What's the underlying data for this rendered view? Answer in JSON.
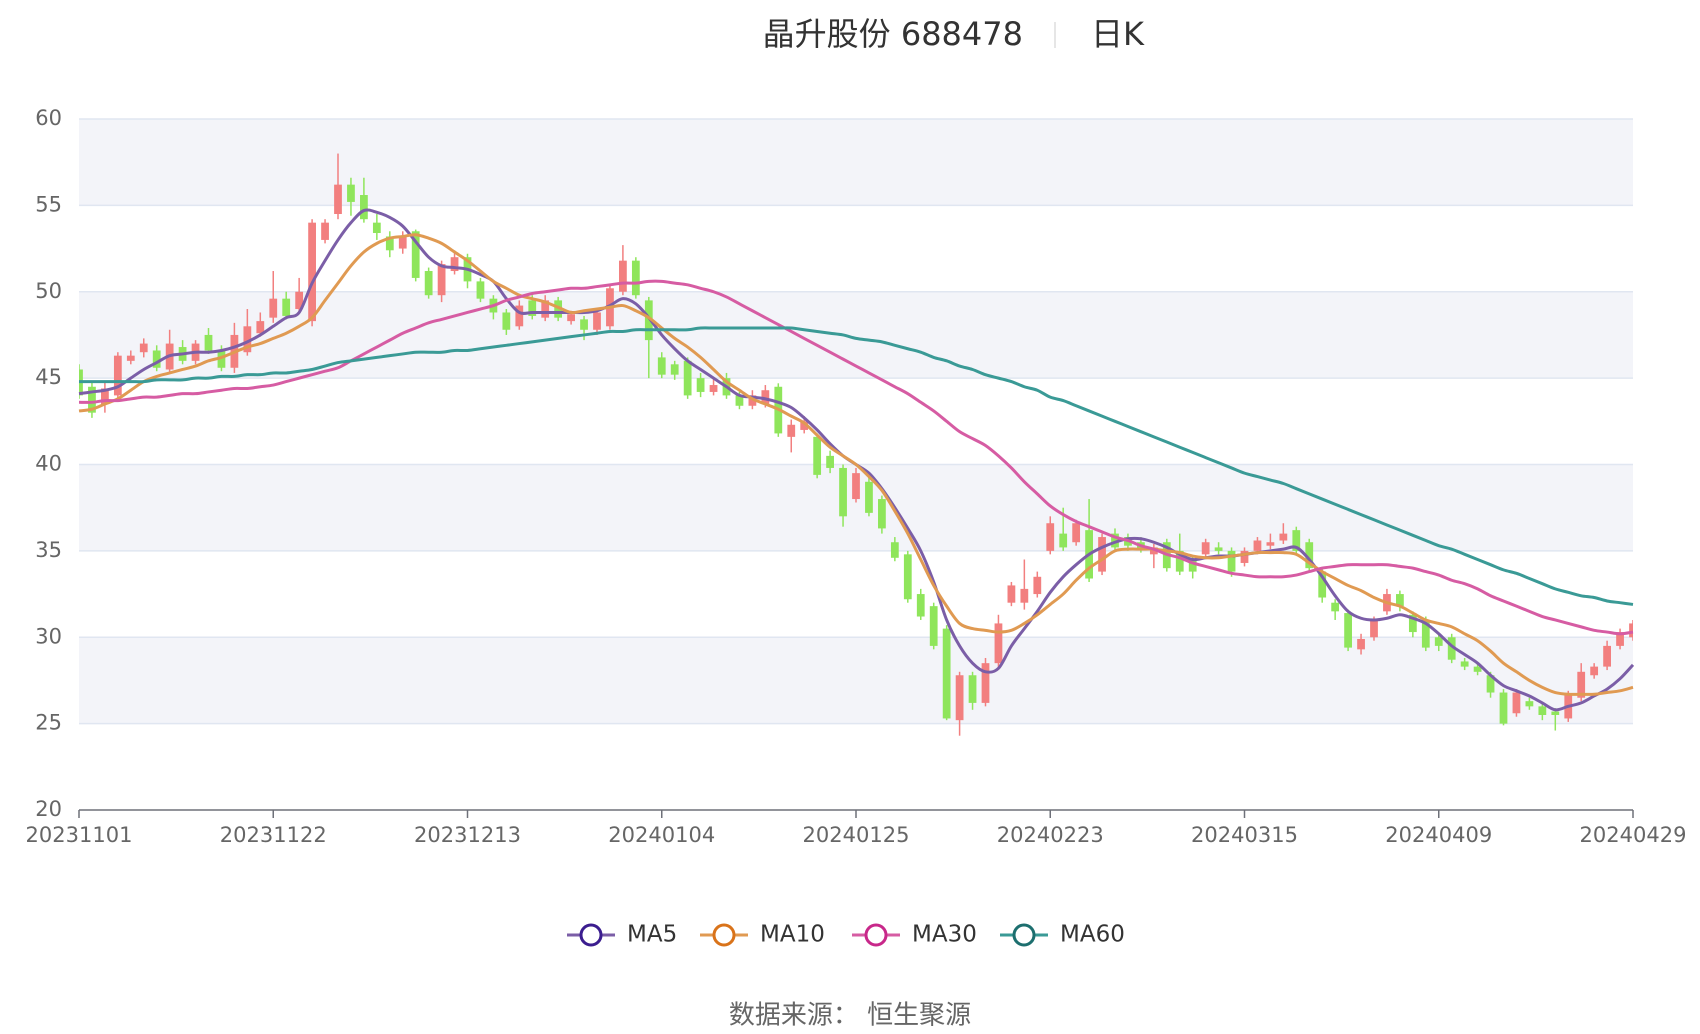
{
  "chart_data": {
    "type": "candlestick",
    "title": "晶升股份 688478",
    "subtitle": "日K",
    "source": "数据来源： 恒生聚源",
    "categories": [
      "20231101",
      null,
      null,
      null,
      null,
      null,
      null,
      null,
      null,
      null,
      null,
      null,
      null,
      null,
      null,
      "20231122",
      null,
      null,
      null,
      null,
      null,
      null,
      null,
      null,
      null,
      null,
      null,
      null,
      null,
      null,
      "20231213",
      null,
      null,
      null,
      null,
      null,
      null,
      null,
      null,
      null,
      null,
      null,
      null,
      null,
      null,
      "20240104",
      null,
      null,
      null,
      null,
      null,
      null,
      null,
      null,
      null,
      null,
      null,
      null,
      null,
      null,
      "20240125",
      null,
      null,
      null,
      null,
      null,
      null,
      null,
      null,
      null,
      null,
      null,
      null,
      null,
      null,
      "20240223",
      null,
      null,
      null,
      null,
      null,
      null,
      null,
      null,
      null,
      null,
      null,
      null,
      null,
      null,
      "20240315",
      null,
      null,
      null,
      null,
      null,
      null,
      null,
      null,
      null,
      null,
      null,
      null,
      null,
      null,
      "20240409",
      null,
      null,
      null,
      null,
      null,
      null,
      null,
      null,
      null,
      null,
      null,
      null,
      null,
      null,
      "20240429"
    ],
    "values": [
      [
        45.5,
        44.0,
        43.8,
        45.8
      ],
      [
        44.5,
        43.0,
        42.7,
        44.8
      ],
      [
        43.5,
        44.4,
        43.0,
        44.8
      ],
      [
        44.0,
        46.3,
        43.8,
        46.5
      ],
      [
        46.0,
        46.3,
        45.8,
        46.6
      ],
      [
        46.5,
        47.0,
        46.2,
        47.3
      ],
      [
        46.6,
        45.6,
        45.4,
        46.9
      ],
      [
        45.5,
        47.0,
        45.3,
        47.8
      ],
      [
        46.8,
        46.0,
        45.8,
        47.2
      ],
      [
        46.0,
        47.0,
        45.8,
        47.2
      ],
      [
        47.5,
        46.6,
        46.4,
        47.9
      ],
      [
        46.6,
        45.6,
        45.4,
        46.9
      ],
      [
        45.6,
        47.5,
        45.3,
        48.2
      ],
      [
        46.5,
        48.0,
        46.3,
        49.0
      ],
      [
        47.6,
        48.3,
        47.4,
        48.8
      ],
      [
        48.5,
        49.6,
        48.2,
        51.2
      ],
      [
        49.6,
        48.6,
        48.4,
        50.0
      ],
      [
        49.0,
        50.0,
        48.8,
        50.8
      ],
      [
        48.3,
        54.0,
        48.0,
        54.2
      ],
      [
        53.0,
        54.0,
        52.8,
        54.2
      ],
      [
        54.5,
        56.2,
        54.2,
        58.0
      ],
      [
        56.2,
        55.2,
        54.4,
        56.6
      ],
      [
        55.6,
        54.2,
        54.0,
        56.6
      ],
      [
        54.0,
        53.4,
        53.0,
        54.5
      ],
      [
        53.2,
        52.4,
        52.0,
        53.5
      ],
      [
        52.5,
        53.2,
        52.2,
        53.5
      ],
      [
        53.5,
        50.8,
        50.6,
        53.6
      ],
      [
        51.2,
        49.8,
        49.6,
        51.4
      ],
      [
        49.8,
        51.6,
        49.4,
        51.8
      ],
      [
        51.2,
        52.0,
        51.0,
        52.4
      ],
      [
        52.0,
        50.6,
        50.2,
        52.2
      ],
      [
        50.6,
        49.6,
        49.4,
        50.8
      ],
      [
        49.6,
        48.8,
        48.4,
        49.8
      ],
      [
        48.8,
        47.8,
        47.5,
        49.0
      ],
      [
        48.0,
        49.2,
        47.8,
        49.5
      ],
      [
        49.5,
        48.6,
        48.4,
        49.8
      ],
      [
        48.5,
        49.5,
        48.3,
        49.8
      ],
      [
        49.5,
        48.5,
        48.3,
        49.7
      ],
      [
        48.3,
        48.7,
        48.1,
        48.9
      ],
      [
        48.4,
        47.8,
        47.2,
        48.6
      ],
      [
        47.8,
        48.8,
        47.5,
        49.0
      ],
      [
        48.0,
        50.2,
        47.8,
        50.4
      ],
      [
        50.0,
        51.8,
        49.8,
        52.7
      ],
      [
        51.8,
        49.8,
        49.6,
        52.0
      ],
      [
        49.5,
        47.2,
        45.0,
        49.7
      ],
      [
        46.2,
        45.2,
        45.0,
        46.5
      ],
      [
        45.8,
        45.2,
        44.9,
        46.0
      ],
      [
        46.0,
        44.0,
        43.8,
        46.2
      ],
      [
        45.0,
        44.2,
        43.9,
        45.3
      ],
      [
        44.2,
        44.6,
        44.0,
        45.0
      ],
      [
        45.0,
        44.0,
        43.8,
        45.3
      ],
      [
        44.0,
        43.4,
        43.2,
        44.2
      ],
      [
        43.4,
        44.0,
        43.2,
        44.3
      ],
      [
        43.5,
        44.3,
        43.3,
        44.6
      ],
      [
        44.5,
        41.8,
        41.6,
        44.7
      ],
      [
        41.6,
        42.3,
        40.7,
        42.6
      ],
      [
        42.0,
        42.5,
        41.8,
        42.8
      ],
      [
        41.6,
        39.4,
        39.2,
        41.8
      ],
      [
        40.5,
        39.8,
        39.5,
        40.8
      ],
      [
        39.8,
        37.0,
        36.4,
        40.0
      ],
      [
        38.0,
        39.5,
        37.8,
        39.8
      ],
      [
        39.0,
        37.2,
        37.0,
        39.3
      ],
      [
        38.0,
        36.3,
        36.0,
        38.2
      ],
      [
        35.5,
        34.6,
        34.4,
        35.8
      ],
      [
        34.8,
        32.2,
        32.0,
        35.0
      ],
      [
        32.5,
        31.2,
        31.0,
        32.8
      ],
      [
        31.8,
        29.5,
        29.3,
        32.0
      ],
      [
        30.5,
        25.3,
        25.2,
        30.7
      ],
      [
        25.2,
        27.8,
        24.3,
        28.0
      ],
      [
        27.8,
        26.2,
        25.8,
        28.0
      ],
      [
        26.2,
        28.5,
        26.0,
        28.8
      ],
      [
        28.5,
        30.8,
        28.2,
        31.3
      ],
      [
        32.0,
        33.0,
        31.8,
        33.2
      ],
      [
        32.0,
        32.8,
        31.6,
        34.5
      ],
      [
        32.5,
        33.5,
        32.3,
        33.8
      ],
      [
        35.0,
        36.6,
        34.8,
        37.0
      ],
      [
        36.0,
        35.2,
        35.0,
        37.5
      ],
      [
        35.5,
        36.6,
        35.3,
        36.8
      ],
      [
        36.2,
        33.4,
        33.2,
        38.0
      ],
      [
        33.8,
        35.8,
        33.6,
        36.0
      ],
      [
        36.0,
        35.2,
        35.0,
        36.3
      ],
      [
        35.8,
        35.3,
        35.0,
        36.0
      ],
      [
        35.5,
        35.1,
        34.9,
        35.8
      ],
      [
        34.8,
        35.2,
        34.0,
        35.4
      ],
      [
        35.5,
        34.0,
        33.8,
        35.7
      ],
      [
        35.0,
        33.8,
        33.6,
        36.0
      ],
      [
        34.5,
        33.8,
        33.4,
        34.7
      ],
      [
        34.8,
        35.5,
        34.6,
        35.7
      ],
      [
        35.2,
        35.0,
        34.8,
        35.5
      ],
      [
        35.0,
        33.8,
        33.5,
        35.2
      ],
      [
        34.3,
        35.0,
        34.1,
        35.2
      ],
      [
        35.0,
        35.6,
        34.8,
        35.8
      ],
      [
        35.3,
        35.5,
        35.1,
        36.0
      ],
      [
        35.6,
        36.0,
        35.4,
        36.6
      ],
      [
        36.2,
        35.0,
        34.8,
        36.4
      ],
      [
        35.5,
        34.0,
        33.8,
        35.7
      ],
      [
        33.8,
        32.3,
        32.0,
        34.0
      ],
      [
        32.0,
        31.5,
        31.0,
        32.2
      ],
      [
        31.4,
        29.4,
        29.2,
        31.6
      ],
      [
        29.3,
        29.9,
        29.0,
        30.2
      ],
      [
        30.0,
        31.0,
        29.8,
        31.2
      ],
      [
        31.5,
        32.5,
        31.3,
        32.8
      ],
      [
        32.5,
        31.8,
        31.5,
        32.7
      ],
      [
        31.3,
        30.3,
        30.0,
        31.5
      ],
      [
        31.0,
        29.4,
        29.2,
        31.2
      ],
      [
        30.0,
        29.5,
        29.2,
        30.2
      ],
      [
        30.0,
        28.7,
        28.5,
        30.2
      ],
      [
        28.6,
        28.3,
        28.1,
        28.8
      ],
      [
        28.3,
        28.0,
        27.8,
        28.5
      ],
      [
        27.8,
        26.8,
        26.5,
        28.0
      ],
      [
        26.8,
        25.0,
        24.9,
        27.0
      ],
      [
        25.6,
        26.8,
        25.4,
        27.0
      ],
      [
        26.3,
        26.0,
        25.8,
        26.5
      ],
      [
        26.0,
        25.5,
        25.2,
        26.2
      ],
      [
        25.7,
        25.5,
        24.6,
        25.9
      ],
      [
        25.3,
        26.7,
        25.1,
        26.9
      ],
      [
        26.5,
        28.0,
        26.3,
        28.5
      ],
      [
        27.8,
        28.3,
        27.6,
        28.5
      ],
      [
        28.3,
        29.5,
        28.1,
        29.8
      ],
      [
        29.5,
        30.3,
        29.3,
        30.5
      ],
      [
        30.0,
        30.8,
        29.8,
        31.0
      ]
    ],
    "up_color": "#f27f7f",
    "down_color": "#8fe55b",
    "series": [
      {
        "name": "MA5",
        "color": "#7b5ea7",
        "marker_color": "#3b1d8f",
        "values": [
          44.1,
          44.2,
          44.3,
          44.5,
          45.0,
          45.5,
          45.9,
          46.3,
          46.4,
          46.5,
          46.5,
          46.6,
          46.8,
          47.1,
          47.5,
          48.0,
          48.5,
          48.8,
          50.5,
          51.8,
          53.0,
          54.0,
          54.7,
          54.6,
          54.3,
          53.8,
          52.9,
          52.0,
          51.5,
          51.4,
          51.3,
          51.0,
          50.6,
          49.6,
          48.8,
          48.8,
          48.8,
          48.8,
          48.8,
          48.8,
          48.9,
          49.2,
          49.6,
          49.3,
          48.5,
          47.5,
          46.7,
          46.0,
          45.5,
          45.0,
          44.5,
          44.0,
          43.9,
          43.8,
          43.6,
          43.3,
          42.7,
          42.0,
          41.2,
          40.5,
          40.0,
          39.5,
          38.6,
          37.5,
          36.3,
          35.0,
          33.2,
          31.0,
          29.5,
          28.5,
          28.0,
          28.2,
          29.5,
          30.5,
          31.5,
          32.6,
          33.5,
          34.2,
          34.8,
          35.2,
          35.5,
          35.7,
          35.7,
          35.5,
          35.2,
          34.8,
          34.5,
          34.6,
          34.7,
          34.7,
          34.8,
          34.9,
          35.0,
          35.1,
          35.2,
          34.5,
          33.5,
          32.4,
          31.5,
          31.1,
          31.0,
          31.1,
          31.3,
          31.1,
          30.8,
          30.2,
          29.5,
          29.0,
          28.5,
          27.8,
          27.2,
          26.9,
          26.6,
          26.2,
          25.8,
          26.0,
          26.2,
          26.6,
          27.0,
          27.6,
          28.4
        ]
      },
      {
        "name": "MA10",
        "color": "#e09a52",
        "marker_color": "#d9731a",
        "values": [
          43.1,
          43.2,
          43.5,
          43.8,
          44.3,
          44.8,
          45.1,
          45.3,
          45.5,
          45.7,
          46.0,
          46.2,
          46.5,
          46.8,
          47.0,
          47.3,
          47.6,
          48.0,
          48.5,
          49.5,
          50.5,
          51.5,
          52.3,
          52.8,
          53.1,
          53.2,
          53.3,
          53.1,
          52.8,
          52.3,
          51.8,
          51.2,
          50.6,
          50.2,
          49.8,
          49.6,
          49.4,
          49.1,
          48.8,
          48.9,
          49.0,
          49.1,
          49.2,
          48.9,
          48.5,
          47.9,
          47.3,
          46.8,
          46.2,
          45.5,
          44.8,
          44.3,
          43.8,
          43.5,
          43.2,
          42.8,
          42.4,
          41.7,
          41.0,
          40.5,
          40.0,
          39.3,
          38.5,
          37.3,
          36.0,
          34.5,
          33.0,
          31.8,
          30.8,
          30.5,
          30.4,
          30.3,
          30.4,
          30.8,
          31.3,
          31.9,
          32.5,
          33.3,
          34.0,
          34.5,
          35.0,
          35.1,
          35.1,
          35.1,
          35.0,
          34.9,
          34.7,
          34.6,
          34.6,
          34.7,
          34.8,
          34.9,
          34.9,
          34.9,
          34.8,
          34.3,
          33.8,
          33.4,
          33.0,
          32.7,
          32.3,
          32.0,
          31.8,
          31.4,
          31.0,
          30.8,
          30.6,
          30.2,
          29.8,
          29.2,
          28.5,
          28.0,
          27.5,
          27.1,
          26.8,
          26.7,
          26.7,
          26.7,
          26.8,
          26.9,
          27.1
        ]
      },
      {
        "name": "MA30",
        "color": "#d65ca3",
        "marker_color": "#c8288a",
        "values": [
          43.6,
          43.6,
          43.7,
          43.7,
          43.8,
          43.9,
          43.9,
          44.0,
          44.1,
          44.1,
          44.2,
          44.3,
          44.4,
          44.4,
          44.5,
          44.6,
          44.8,
          45.0,
          45.2,
          45.4,
          45.6,
          46.0,
          46.4,
          46.8,
          47.2,
          47.6,
          47.9,
          48.2,
          48.4,
          48.6,
          48.8,
          49.0,
          49.2,
          49.5,
          49.7,
          49.9,
          50.0,
          50.1,
          50.2,
          50.2,
          50.3,
          50.4,
          50.5,
          50.5,
          50.6,
          50.6,
          50.5,
          50.4,
          50.2,
          50.0,
          49.7,
          49.3,
          48.9,
          48.5,
          48.1,
          47.7,
          47.3,
          46.9,
          46.5,
          46.1,
          45.7,
          45.3,
          44.9,
          44.5,
          44.1,
          43.6,
          43.1,
          42.5,
          41.9,
          41.5,
          41.1,
          40.5,
          39.8,
          39.0,
          38.3,
          37.6,
          37.1,
          36.7,
          36.4,
          36.1,
          35.8,
          35.6,
          35.3,
          35.1,
          34.8,
          34.6,
          34.3,
          34.1,
          33.9,
          33.7,
          33.6,
          33.5,
          33.5,
          33.5,
          33.6,
          33.8,
          34.0,
          34.1,
          34.2,
          34.2,
          34.2,
          34.2,
          34.1,
          34.0,
          33.8,
          33.6,
          33.3,
          33.1,
          32.8,
          32.4,
          32.1,
          31.8,
          31.5,
          31.2,
          31.0,
          30.8,
          30.6,
          30.4,
          30.3,
          30.2,
          30.3
        ]
      },
      {
        "name": "MA60",
        "color": "#3a9a96",
        "marker_color": "#1d6f6f",
        "values": [
          44.8,
          44.8,
          44.8,
          44.8,
          44.8,
          44.8,
          44.9,
          44.9,
          44.9,
          45.0,
          45.0,
          45.1,
          45.1,
          45.2,
          45.2,
          45.3,
          45.3,
          45.4,
          45.5,
          45.7,
          45.9,
          46.0,
          46.1,
          46.2,
          46.3,
          46.4,
          46.5,
          46.5,
          46.5,
          46.6,
          46.6,
          46.7,
          46.8,
          46.9,
          47.0,
          47.1,
          47.2,
          47.3,
          47.4,
          47.5,
          47.6,
          47.7,
          47.7,
          47.8,
          47.8,
          47.8,
          47.8,
          47.8,
          47.9,
          47.9,
          47.9,
          47.9,
          47.9,
          47.9,
          47.9,
          47.9,
          47.8,
          47.7,
          47.6,
          47.5,
          47.3,
          47.2,
          47.1,
          46.9,
          46.7,
          46.5,
          46.2,
          46.0,
          45.7,
          45.5,
          45.2,
          45.0,
          44.8,
          44.5,
          44.3,
          43.9,
          43.7,
          43.4,
          43.1,
          42.8,
          42.5,
          42.2,
          41.9,
          41.6,
          41.3,
          41.0,
          40.7,
          40.4,
          40.1,
          39.8,
          39.5,
          39.3,
          39.1,
          38.9,
          38.6,
          38.3,
          38.0,
          37.7,
          37.4,
          37.1,
          36.8,
          36.5,
          36.2,
          35.9,
          35.6,
          35.3,
          35.1,
          34.8,
          34.5,
          34.2,
          33.9,
          33.7,
          33.4,
          33.1,
          32.8,
          32.6,
          32.4,
          32.3,
          32.1,
          32.0,
          31.9
        ]
      }
    ],
    "ylim": [
      20,
      60
    ],
    "yticks": [
      20,
      25,
      30,
      35,
      40,
      45,
      50,
      55,
      60
    ],
    "grid": true,
    "split_area": true,
    "legend": "bottom"
  }
}
